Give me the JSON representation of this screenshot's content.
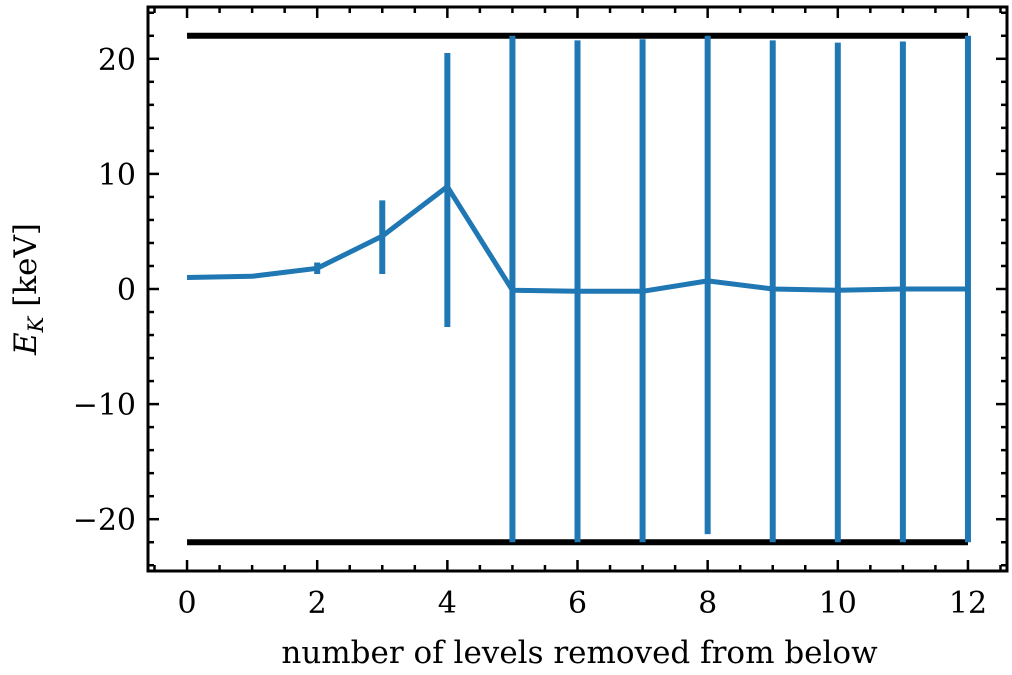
{
  "chart_data": {
    "type": "line",
    "xlabel": "number of levels removed from below",
    "ylabel_main": "E",
    "ylabel_sub": "K",
    "ylabel_unit": " [keV]",
    "xlim": [
      -0.6,
      12.6
    ],
    "ylim": [
      -24.5,
      24.5
    ],
    "x_ticks": [
      0,
      2,
      4,
      6,
      8,
      10,
      12
    ],
    "x_tick_labels": [
      "0",
      "2",
      "4",
      "6",
      "8",
      "10",
      "12"
    ],
    "y_ticks": [
      -20,
      -10,
      0,
      10,
      20
    ],
    "y_tick_labels": [
      "−20",
      "−10",
      "0",
      "10",
      "20"
    ],
    "grid": false,
    "series_color": "#1f77b4",
    "bound_color": "#000000",
    "bounds": [
      22,
      -22
    ],
    "series": [
      {
        "x": [
          0,
          1,
          2,
          3,
          4,
          5,
          6,
          7,
          8,
          9,
          10,
          11,
          12
        ],
        "y": [
          1.0,
          1.1,
          1.8,
          4.6,
          8.9,
          -0.1,
          -0.2,
          -0.2,
          0.7,
          0.0,
          -0.1,
          0.0,
          0.0
        ],
        "yerr_low": [
          1.0,
          1.1,
          1.3,
          1.3,
          -3.3,
          -22.0,
          -22.0,
          -22.0,
          -21.3,
          -22.0,
          -22.0,
          -22.0,
          -22.0
        ],
        "yerr_high": [
          1.0,
          1.1,
          2.3,
          7.7,
          20.5,
          22.0,
          21.6,
          21.7,
          22.0,
          21.6,
          21.4,
          21.5,
          22.0
        ]
      }
    ]
  }
}
